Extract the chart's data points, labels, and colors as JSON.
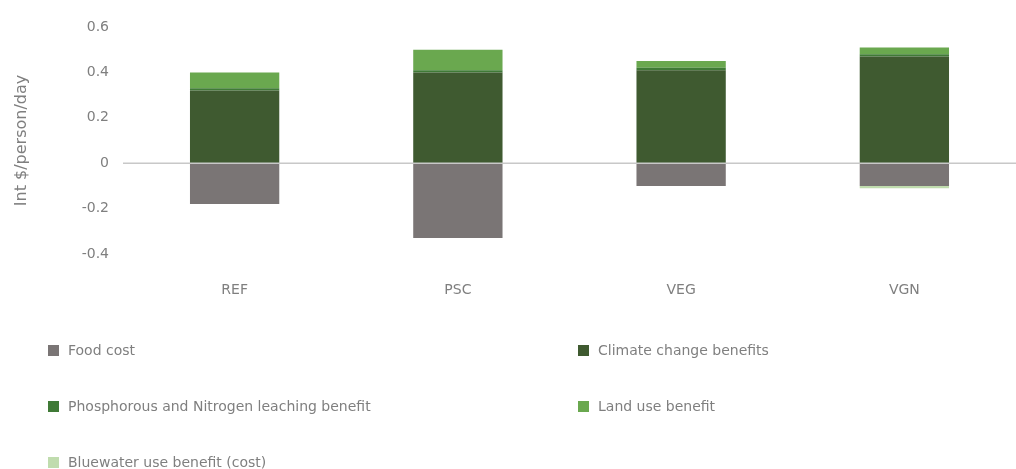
{
  "chart_data": {
    "type": "bar",
    "stacked": true,
    "ylabel": "Int $/person/day",
    "categories": [
      "REF",
      "PSC",
      "VEG",
      "VGN"
    ],
    "series": [
      {
        "name": "Food cost",
        "color": "#7a7575",
        "values": [
          -0.18,
          -0.33,
          -0.1,
          -0.1
        ]
      },
      {
        "name": "Climate change benefits",
        "color": "#3f5a30",
        "values": [
          0.32,
          0.4,
          0.41,
          0.47
        ]
      },
      {
        "name": "Phosphorous and Nitrogen leaching benefit",
        "color": "#3f7a36",
        "values": [
          0.01,
          0.01,
          0.01,
          0.01
        ]
      },
      {
        "name": "Land use benefit",
        "color": "#6aa84f",
        "values": [
          0.07,
          0.09,
          0.03,
          0.03
        ]
      },
      {
        "name": "Bluewater use benefit (cost)",
        "color": "#c0dcae",
        "values": [
          0,
          0,
          0,
          -0.01
        ]
      }
    ],
    "ylim": [
      -0.4,
      0.6
    ],
    "yticks": [
      -0.4,
      -0.2,
      0,
      0.2,
      0.4,
      0.6
    ],
    "ref_lines": [
      {
        "axis": "y",
        "value": 0,
        "color": "#c8c8c8"
      }
    ],
    "legend": "bottom"
  }
}
